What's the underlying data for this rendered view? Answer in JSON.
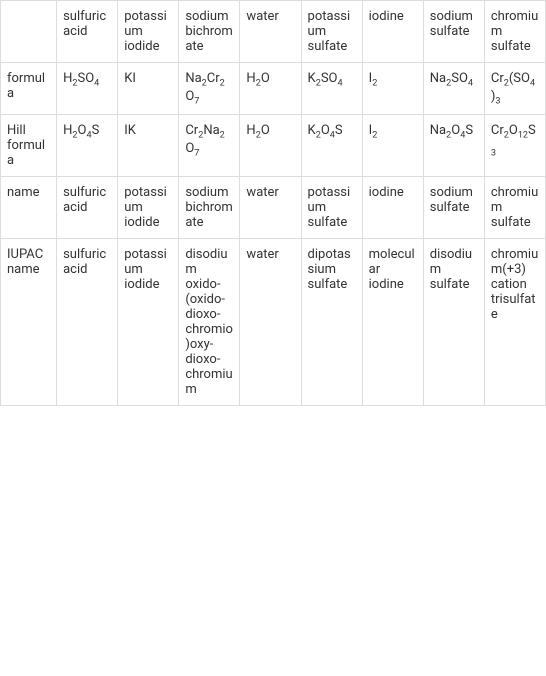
{
  "table": {
    "columns": [
      "",
      "sulfuric acid",
      "potassium iodide",
      "sodium bichromate",
      "water",
      "potassium sulfate",
      "iodine",
      "sodium sulfate",
      "chromium sulfate"
    ],
    "rows": [
      {
        "header": "formula",
        "cells_html": [
          "H<sub>2</sub>SO<sub>4</sub>",
          "KI",
          "Na<sub>2</sub>Cr<sub>2</sub>O<sub>7</sub>",
          "H<sub>2</sub>O",
          "K<sub>2</sub>SO<sub>4</sub>",
          "I<sub>2</sub>",
          "Na<sub>2</sub>SO<sub>4</sub>",
          "Cr<sub>2</sub>(SO<sub>4</sub>)<sub>3</sub>"
        ]
      },
      {
        "header": "Hill formula",
        "cells_html": [
          "H<sub>2</sub>O<sub>4</sub>S",
          "IK",
          "Cr<sub>2</sub>Na<sub>2</sub>O<sub>7</sub>",
          "H<sub>2</sub>O",
          "K<sub>2</sub>O<sub>4</sub>S",
          "I<sub>2</sub>",
          "Na<sub>2</sub>O<sub>4</sub>S",
          "Cr<sub>2</sub>O<sub>12</sub>S<sub>3</sub>"
        ]
      },
      {
        "header": "name",
        "cells": [
          "sulfuric acid",
          "potassium iodide",
          "sodium bichromate",
          "water",
          "potassium sulfate",
          "iodine",
          "sodium sulfate",
          "chromium sulfate"
        ]
      },
      {
        "header": "IUPAC name",
        "cells": [
          "sulfuric acid",
          "potassium iodide",
          "disodium oxido-(oxido-dioxo-chromio)oxy-dioxo-chromium",
          "water",
          "dipotassium sulfate",
          "molecular iodine",
          "disodium sulfate",
          "chromium(+3) cation trisulfate"
        ]
      }
    ],
    "border_color": "#ddd",
    "background_color": "#ffffff",
    "text_color": "#333333",
    "font_size": 13
  }
}
